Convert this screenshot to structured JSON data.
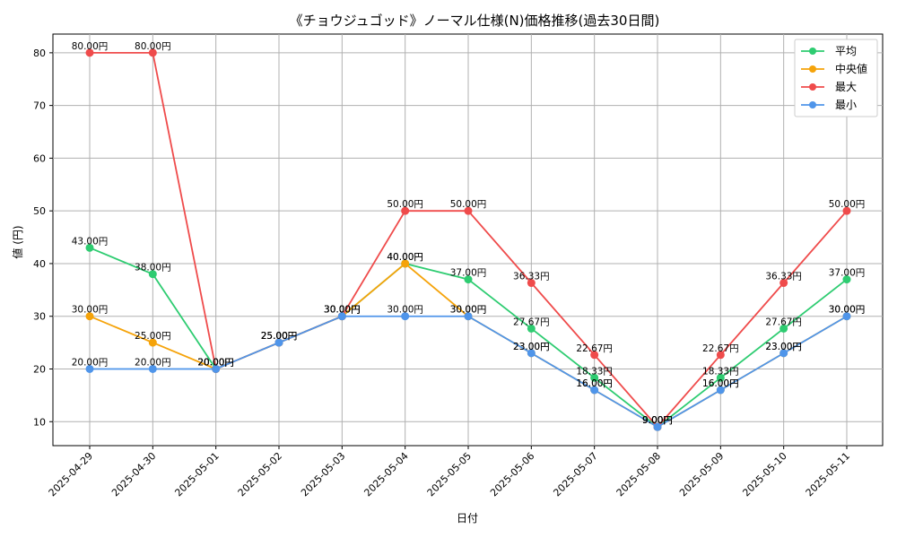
{
  "chart_data": {
    "type": "line",
    "title": "《チョウジュゴッド》ノーマル仕様(N)価格推移(過去30日間)",
    "xlabel": "日付",
    "ylabel": "値 (円)",
    "categories": [
      "2025-04-29",
      "2025-04-30",
      "2025-05-01",
      "2025-05-02",
      "2025-05-03",
      "2025-05-04",
      "2025-05-05",
      "2025-05-06",
      "2025-05-07",
      "2025-05-08",
      "2025-05-09",
      "2025-05-10",
      "2025-05-11"
    ],
    "ylim": [
      5.45,
      83.55
    ],
    "yticks": [
      10,
      20,
      30,
      40,
      50,
      60,
      70,
      80
    ],
    "grid": true,
    "legend_position": "top-right",
    "series": [
      {
        "name": "平均",
        "color": "#2ecc71",
        "values": [
          43.0,
          38.0,
          20.0,
          25.0,
          30.0,
          40.0,
          37.0,
          27.67,
          18.33,
          9.0,
          18.33,
          27.67,
          37.0
        ],
        "labels": [
          "43.00円",
          "38.00円",
          "20.00円",
          "25.00円",
          "30.00円",
          "40.00円",
          "37.00円",
          "27.67円",
          "18.33円",
          "9.00円",
          "18.33円",
          "27.67円",
          "37.00円"
        ]
      },
      {
        "name": "中央値",
        "color": "#f5a30a",
        "values": [
          30.0,
          25.0,
          20.0,
          25.0,
          30.0,
          40.0,
          30.0,
          23.0,
          16.0,
          9.0,
          16.0,
          23.0,
          30.0
        ],
        "labels": [
          "30.00円",
          "25.00円",
          "20.00円",
          "25.00円",
          "30.00円",
          "40.00円",
          "30.00円",
          "23.00円",
          "16.00円",
          "9.00円",
          "16.00円",
          "23.00円",
          "30.00円"
        ]
      },
      {
        "name": "最大",
        "color": "#ef4b4b",
        "values": [
          80.0,
          80.0,
          20.0,
          25.0,
          30.0,
          50.0,
          50.0,
          36.33,
          22.67,
          9.0,
          22.67,
          36.33,
          50.0
        ],
        "labels": [
          "80.00円",
          "80.00円",
          "20.00円",
          "25.00円",
          "30.00円",
          "50.00円",
          "50.00円",
          "36.33円",
          "22.67円",
          "9.00円",
          "22.67円",
          "36.33円",
          "50.00円"
        ]
      },
      {
        "name": "最小",
        "color": "#4f95ea",
        "values": [
          20.0,
          20.0,
          20.0,
          25.0,
          30.0,
          30.0,
          30.0,
          23.0,
          16.0,
          9.0,
          16.0,
          23.0,
          30.0
        ],
        "labels": [
          "20.00円",
          "20.00円",
          "20.00円",
          "25.00円",
          "30.00円",
          "30.00円",
          "30.00円",
          "23.00円",
          "16.00円",
          "9.00円",
          "16.00円",
          "23.00円",
          "30.00円"
        ]
      }
    ]
  }
}
